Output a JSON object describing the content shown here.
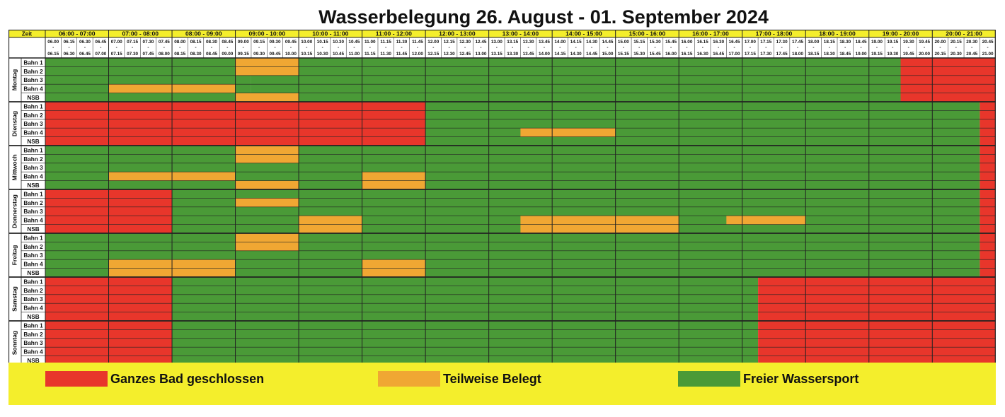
{
  "title": "Wasserbelegung 26. August - 01. September 2024",
  "colors": {
    "closed": "#e8362b",
    "partial": "#f0a733",
    "free": "#4a9a37",
    "header_bg": "#f4ee2c",
    "grid_line": "#222222"
  },
  "header": {
    "corner_label": "Zeit",
    "hours": [
      "06:00 - 07:00",
      "07:00 - 08:00",
      "08:00 - 09:00",
      "09:00 - 10:00",
      "10:00 - 11:00",
      "11:00 - 12:00",
      "12:00 - 13:00",
      "13:00 - 14:00",
      "14:00 - 15:00",
      "15:00 - 16:00",
      "16:00 - 17:00",
      "17:00 - 18:00",
      "18:00 - 19:00",
      "19:00 - 20:00",
      "20:00 - 21:00"
    ],
    "slot_start": [
      "06.00",
      "06.15",
      "06.30",
      "06.45",
      "07.00",
      "07.15",
      "07.30",
      "07.45",
      "08.00",
      "08.15",
      "08.30",
      "08.45",
      "09.00",
      "09.15",
      "09.30",
      "09.45",
      "10.00",
      "10.15",
      "10.30",
      "10.45",
      "11.00",
      "11.15",
      "11.30",
      "11.45",
      "12.00",
      "12.15",
      "12.30",
      "12.45",
      "13.00",
      "13.15",
      "13.30",
      "13.45",
      "14.00",
      "14.15",
      "14.30",
      "14.45",
      "15.00",
      "15.15",
      "15.30",
      "15.45",
      "16.00",
      "16.15",
      "16.30",
      "16.45",
      "17.00",
      "17.15",
      "17.30",
      "17.45",
      "18.00",
      "18.15",
      "18.30",
      "18.45",
      "19.00",
      "19.15",
      "19.30",
      "19.45",
      "20.00",
      "20.15",
      "20.30",
      "20.45"
    ],
    "slot_end": [
      "06.15",
      "06.30",
      "06.45",
      "07.00",
      "07.15",
      "07.30",
      "07.45",
      "08.00",
      "08.15",
      "08.30",
      "08.45",
      "09.00",
      "09.15",
      "09.30",
      "09.45",
      "10.00",
      "10.15",
      "10.30",
      "10.45",
      "11.00",
      "11.15",
      "11.30",
      "11.45",
      "12.00",
      "12.15",
      "12.30",
      "12.45",
      "13.00",
      "13.15",
      "13.30",
      "13.45",
      "14.00",
      "14.15",
      "14.30",
      "14.45",
      "15.00",
      "15.15",
      "15.30",
      "15.45",
      "16.00",
      "16.15",
      "16.30",
      "16.45",
      "17.00",
      "17.15",
      "17.30",
      "17.45",
      "18.00",
      "18.15",
      "18.30",
      "18.45",
      "19.00",
      "19.15",
      "19.30",
      "19.45",
      "20.00",
      "20.15",
      "20.30",
      "20.45",
      "21.00"
    ],
    "slot_separator": "-"
  },
  "lanes": [
    "Bahn 1",
    "Bahn 2",
    "Bahn 3",
    "Bahn 4",
    "NSB"
  ],
  "days": [
    {
      "name": "Montag",
      "segments": [
        {
          "from": 0,
          "to": 13,
          "rows": [
            0,
            1,
            2,
            3,
            4
          ],
          "status": "free"
        },
        {
          "from": 13,
          "to": 56,
          "rows": [
            0,
            1,
            2,
            3,
            4
          ],
          "status": "free"
        },
        {
          "from": 12,
          "to": 16,
          "rows": [
            0,
            1
          ],
          "status": "partial"
        },
        {
          "from": 4,
          "to": 12,
          "rows": [
            3
          ],
          "status": "partial"
        },
        {
          "from": 12,
          "to": 16,
          "rows": [
            4
          ],
          "status": "partial"
        },
        {
          "from": 56,
          "to": 60,
          "rows": [
            0,
            1,
            2,
            3,
            4
          ],
          "status": "closed"
        },
        {
          "from": 52,
          "to": 56,
          "rows": [
            0,
            1,
            2,
            3,
            4
          ],
          "status": "free"
        },
        {
          "from": 54,
          "to": 56,
          "rows": [
            0,
            1,
            2,
            3,
            4
          ],
          "status": "closed"
        }
      ]
    },
    {
      "name": "Dienstag",
      "segments": [
        {
          "from": 0,
          "to": 24,
          "rows": [
            0,
            1,
            2,
            3,
            4
          ],
          "status": "closed"
        },
        {
          "from": 24,
          "to": 59,
          "rows": [
            0,
            1,
            2,
            3,
            4
          ],
          "status": "free"
        },
        {
          "from": 30,
          "to": 36,
          "rows": [
            3
          ],
          "status": "partial"
        },
        {
          "from": 59,
          "to": 60,
          "rows": [
            0,
            1,
            2,
            3,
            4
          ],
          "status": "closed"
        }
      ]
    },
    {
      "name": "Mittwoch",
      "segments": [
        {
          "from": 0,
          "to": 59,
          "rows": [
            0,
            1,
            2,
            3,
            4
          ],
          "status": "free"
        },
        {
          "from": 12,
          "to": 16,
          "rows": [
            0,
            1
          ],
          "status": "partial"
        },
        {
          "from": 4,
          "to": 12,
          "rows": [
            3
          ],
          "status": "partial"
        },
        {
          "from": 20,
          "to": 24,
          "rows": [
            3
          ],
          "status": "partial"
        },
        {
          "from": 12,
          "to": 16,
          "rows": [
            4
          ],
          "status": "partial"
        },
        {
          "from": 20,
          "to": 24,
          "rows": [
            4
          ],
          "status": "partial"
        },
        {
          "from": 59,
          "to": 60,
          "rows": [
            0,
            1,
            2,
            3,
            4
          ],
          "status": "closed"
        }
      ]
    },
    {
      "name": "Donnerstag",
      "segments": [
        {
          "from": 0,
          "to": 8,
          "rows": [
            0,
            1,
            2,
            3,
            4
          ],
          "status": "closed"
        },
        {
          "from": 8,
          "to": 59,
          "rows": [
            0,
            1,
            2,
            3,
            4
          ],
          "status": "free"
        },
        {
          "from": 12,
          "to": 16,
          "rows": [
            1
          ],
          "status": "partial"
        },
        {
          "from": 16,
          "to": 20,
          "rows": [
            3,
            4
          ],
          "status": "partial"
        },
        {
          "from": 30,
          "to": 40,
          "rows": [
            3,
            4
          ],
          "status": "partial"
        },
        {
          "from": 43,
          "to": 48,
          "rows": [
            3
          ],
          "status": "partial"
        },
        {
          "from": 59,
          "to": 60,
          "rows": [
            0,
            1,
            2,
            3,
            4
          ],
          "status": "closed"
        }
      ]
    },
    {
      "name": "Freitag",
      "segments": [
        {
          "from": 0,
          "to": 59,
          "rows": [
            0,
            1,
            2,
            3,
            4
          ],
          "status": "free"
        },
        {
          "from": 12,
          "to": 16,
          "rows": [
            0,
            1
          ],
          "status": "partial"
        },
        {
          "from": 4,
          "to": 12,
          "rows": [
            3,
            4
          ],
          "status": "partial"
        },
        {
          "from": 20,
          "to": 24,
          "rows": [
            3,
            4
          ],
          "status": "partial"
        },
        {
          "from": 59,
          "to": 60,
          "rows": [
            0,
            1,
            2,
            3,
            4
          ],
          "status": "closed"
        }
      ]
    },
    {
      "name": "Samstag",
      "segments": [
        {
          "from": 0,
          "to": 8,
          "rows": [
            0,
            1,
            2,
            3,
            4
          ],
          "status": "closed"
        },
        {
          "from": 8,
          "to": 45,
          "rows": [
            0,
            1,
            2,
            3,
            4
          ],
          "status": "free"
        },
        {
          "from": 45,
          "to": 60,
          "rows": [
            0,
            1,
            2,
            3,
            4
          ],
          "status": "closed"
        }
      ]
    },
    {
      "name": "Sonntag",
      "segments": [
        {
          "from": 0,
          "to": 8,
          "rows": [
            0,
            1,
            2,
            3,
            4
          ],
          "status": "closed"
        },
        {
          "from": 8,
          "to": 45,
          "rows": [
            0,
            1,
            2,
            3,
            4
          ],
          "status": "free"
        },
        {
          "from": 45,
          "to": 60,
          "rows": [
            0,
            1,
            2,
            3,
            4
          ],
          "status": "closed"
        }
      ]
    }
  ],
  "legend": [
    {
      "status": "closed",
      "label": "Ganzes Bad geschlossen"
    },
    {
      "status": "partial",
      "label": "Teilweise Belegt"
    },
    {
      "status": "free",
      "label": "Freier Wassersport"
    }
  ]
}
